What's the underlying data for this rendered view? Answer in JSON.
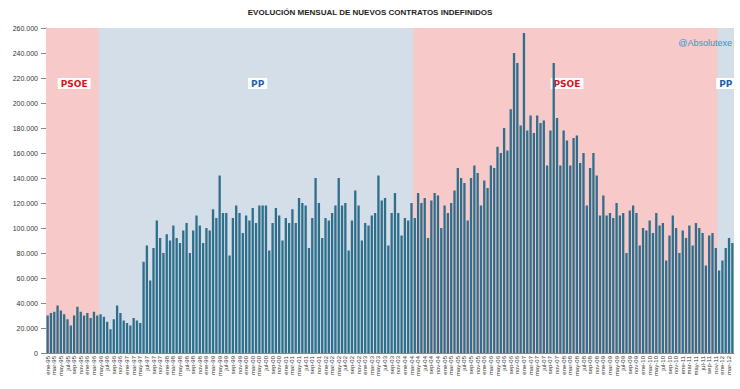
{
  "chart_data": {
    "type": "bar",
    "title": "EVOLUCIÓN MENSUAL DE NUEVOS CONTRATOS INDEFINIDOS",
    "watermark": "@Absolutexe",
    "color": "#2f6f8c",
    "grid": true,
    "ylim": [
      0,
      260000
    ],
    "yticks": [
      {
        "value": 0,
        "label": "0"
      },
      {
        "value": 20000,
        "label": "20.000"
      },
      {
        "value": 40000,
        "label": "40.000"
      },
      {
        "value": 60000,
        "label": "60.000"
      },
      {
        "value": 80000,
        "label": "80.000"
      },
      {
        "value": 100000,
        "label": "100.000"
      },
      {
        "value": 120000,
        "label": "120.000"
      },
      {
        "value": 140000,
        "label": "140.000"
      },
      {
        "value": 160000,
        "label": "160.000"
      },
      {
        "value": 180000,
        "label": "180.000"
      },
      {
        "value": 200000,
        "label": "200.000"
      },
      {
        "value": 220000,
        "label": "220.000"
      },
      {
        "value": 240000,
        "label": "240.000"
      },
      {
        "value": 260000,
        "label": "260.000"
      }
    ],
    "periods": [
      {
        "label": "PSOE",
        "color": "#f8c9c9",
        "from": 0,
        "to": 16
      },
      {
        "label": "PP",
        "color": "#d3dee8",
        "from": 16,
        "to": 111
      },
      {
        "label": "PSOE",
        "color": "#f8c9c9",
        "from": 111,
        "to": 203
      },
      {
        "label": "PP",
        "color": "#d3dee8",
        "from": 203,
        "to": 207
      }
    ],
    "categories": [
      "ene-95",
      null,
      "mar-95",
      null,
      "may-95",
      null,
      "jul-95",
      null,
      "sep-95",
      null,
      "nov-95",
      null,
      "ene-96",
      null,
      "mar-96",
      null,
      "may-96",
      null,
      "jul-96",
      null,
      "sep-96",
      null,
      "nov-96",
      null,
      "ene-97",
      null,
      "mar-97",
      null,
      "may-97",
      null,
      "jul-97",
      null,
      "sep-97",
      null,
      "nov-97",
      null,
      "ene-98",
      null,
      "mar-98",
      null,
      "may-98",
      null,
      "jul-98",
      null,
      "sep-98",
      null,
      "nov-98",
      null,
      "ene-99",
      null,
      "mar-99",
      null,
      "may-99",
      null,
      "jul-99",
      null,
      "sep-99",
      null,
      "nov-99",
      null,
      "ene-00",
      null,
      "mar-00",
      null,
      "may-00",
      null,
      "jul-00",
      null,
      "sep-00",
      null,
      "nov-00",
      null,
      "ene-01",
      null,
      "mar-01",
      null,
      "may-01",
      null,
      "jul-01",
      null,
      "sep-01",
      null,
      "nov-01",
      null,
      "ene-02",
      null,
      "mar-02",
      null,
      "may-02",
      null,
      "jul-02",
      null,
      "sep-02",
      null,
      "nov-02",
      null,
      "ene-03",
      null,
      "mar-03",
      null,
      "may-03",
      null,
      "jul-03",
      null,
      "sep-03",
      null,
      "nov-03",
      null,
      "ene-04",
      null,
      "mar-04",
      null,
      "may-04",
      null,
      "jul-04",
      null,
      "sep-04",
      null,
      "nov-04",
      null,
      "ene-05",
      null,
      "mar-05",
      null,
      "may-05",
      null,
      "jul-05",
      null,
      "sep-05",
      null,
      "nov-05",
      null,
      "ene-06",
      null,
      "mar-06",
      null,
      "may-06",
      null,
      "jul-06",
      null,
      "sep-06",
      null,
      "nov-06",
      null,
      "ene-07",
      null,
      "mar-07",
      null,
      "may-07",
      null,
      "jul-07",
      null,
      "sep-07",
      null,
      "nov-07",
      null,
      "ene-08",
      null,
      "mar-08",
      null,
      "may-08",
      null,
      "jul-08",
      null,
      "sep-08",
      null,
      "nov-08",
      null,
      "ene-09",
      null,
      "mar-09",
      null,
      "may-09",
      null,
      "jul-09",
      null,
      "sep-09",
      null,
      "nov-09",
      null,
      "ene-10",
      null,
      "mar-10",
      null,
      "may-10",
      null,
      "jul-10",
      null,
      "sep-10",
      null,
      "nov-10",
      null,
      "ene-11",
      null,
      "mar-11",
      null,
      "may-11",
      null,
      "jul-11",
      null,
      "sep-11",
      null,
      "nov-11",
      null,
      "ene-12",
      null,
      "mar-12",
      null
    ],
    "values": [
      30000,
      32000,
      33000,
      38000,
      34000,
      31000,
      27000,
      22000,
      30000,
      37000,
      33000,
      30000,
      32000,
      28000,
      33000,
      30000,
      31000,
      29000,
      25000,
      19000,
      27000,
      38000,
      32000,
      26000,
      24000,
      22000,
      28000,
      26000,
      24000,
      73000,
      86000,
      58000,
      84000,
      106000,
      92000,
      80000,
      95000,
      90000,
      102000,
      92000,
      88000,
      98000,
      104000,
      80000,
      98000,
      110000,
      102000,
      88000,
      100000,
      98000,
      115000,
      108000,
      142000,
      112000,
      112000,
      78000,
      108000,
      118000,
      112000,
      96000,
      110000,
      106000,
      116000,
      104000,
      118000,
      118000,
      118000,
      82000,
      104000,
      116000,
      110000,
      90000,
      108000,
      104000,
      115000,
      104000,
      124000,
      120000,
      118000,
      84000,
      108000,
      140000,
      120000,
      92000,
      108000,
      106000,
      112000,
      118000,
      140000,
      118000,
      120000,
      82000,
      106000,
      130000,
      118000,
      90000,
      104000,
      102000,
      110000,
      112000,
      142000,
      122000,
      124000,
      86000,
      112000,
      128000,
      112000,
      94000,
      108000,
      106000,
      120000,
      108000,
      128000,
      120000,
      124000,
      92000,
      122000,
      128000,
      126000,
      100000,
      118000,
      112000,
      120000,
      130000,
      148000,
      140000,
      136000,
      106000,
      140000,
      150000,
      144000,
      118000,
      138000,
      132000,
      150000,
      148000,
      165000,
      160000,
      180000,
      162000,
      195000,
      240000,
      232000,
      182000,
      256000,
      178000,
      190000,
      176000,
      190000,
      184000,
      186000,
      150000,
      178000,
      232000,
      188000,
      150000,
      178000,
      170000,
      150000,
      172000,
      174000,
      152000,
      160000,
      118000,
      148000,
      160000,
      142000,
      110000,
      126000,
      110000,
      112000,
      108000,
      120000,
      110000,
      112000,
      80000,
      114000,
      118000,
      112000,
      86000,
      100000,
      98000,
      106000,
      96000,
      112000,
      102000,
      104000,
      74000,
      94000,
      110000,
      100000,
      80000,
      98000,
      92000,
      102000,
      86000,
      104000,
      100000,
      96000,
      70000,
      94000,
      96000,
      84000,
      66000,
      74000,
      84000,
      92000,
      88000
    ]
  }
}
